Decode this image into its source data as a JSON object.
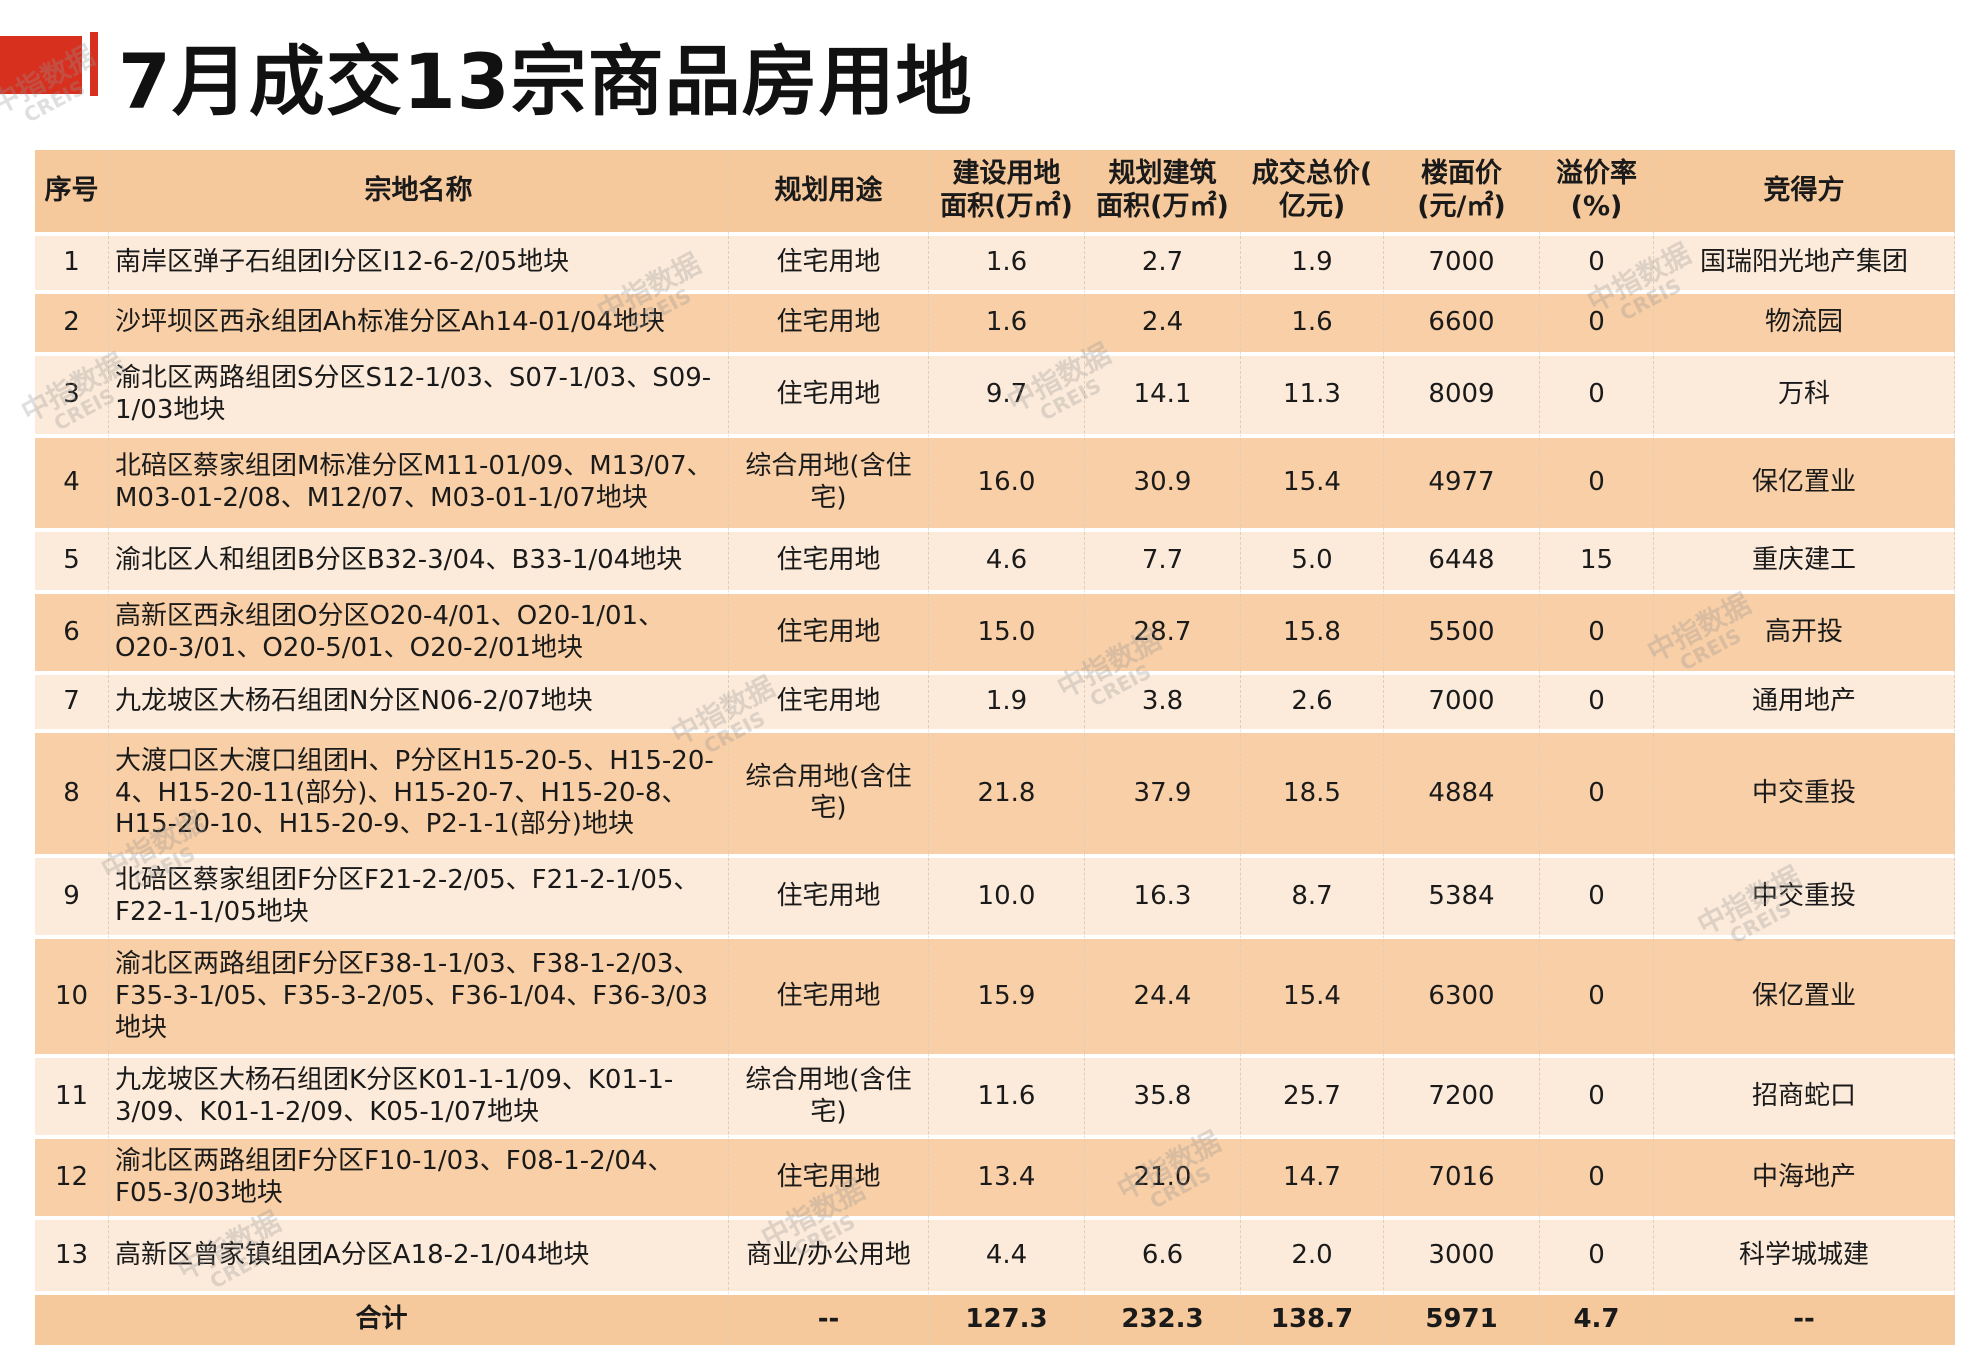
{
  "title": "7月成交13宗商品房用地",
  "watermark": {
    "main": "中指数据",
    "sub": "CREIS"
  },
  "table": {
    "headers": {
      "no": "序号",
      "name": "宗地名称",
      "use": "规划用途",
      "land_area": [
        "建设用地",
        "面积(万㎡)"
      ],
      "build_area": [
        "规划建筑",
        "面积(万㎡)"
      ],
      "total_price": [
        "成交总价(",
        "亿元)"
      ],
      "floor_price": [
        "楼面价",
        "(元/㎡)"
      ],
      "premium": [
        "溢价率",
        "(%)"
      ],
      "winner": "竞得方"
    },
    "rows": [
      {
        "no": "1",
        "name": "南岸区弹子石组团I分区I12-6-2/05地块",
        "use": "住宅用地",
        "land_area": "1.6",
        "build_area": "2.7",
        "total_price": "1.9",
        "floor_price": "7000",
        "premium": "0",
        "winner": "国瑞阳光地产集团"
      },
      {
        "no": "2",
        "name": "沙坪坝区西永组团Ah标准分区Ah14-01/04地块",
        "use": "住宅用地",
        "land_area": "1.6",
        "build_area": "2.4",
        "total_price": "1.6",
        "floor_price": "6600",
        "premium": "0",
        "winner": "物流园"
      },
      {
        "no": "3",
        "name": "渝北区两路组团S分区S12-1/03、S07-1/03、S09-1/03地块",
        "use": "住宅用地",
        "land_area": "9.7",
        "build_area": "14.1",
        "total_price": "11.3",
        "floor_price": "8009",
        "premium": "0",
        "winner": "万科"
      },
      {
        "no": "4",
        "name": "北碚区蔡家组团M标准分区M11-01/09、M13/07、M03-01-2/08、M12/07、M03-01-1/07地块",
        "use": "综合用地(含住宅)",
        "land_area": "16.0",
        "build_area": "30.9",
        "total_price": "15.4",
        "floor_price": "4977",
        "premium": "0",
        "winner": "保亿置业"
      },
      {
        "no": "5",
        "name": "渝北区人和组团B分区B32-3/04、B33-1/04地块",
        "use": "住宅用地",
        "land_area": "4.6",
        "build_area": "7.7",
        "total_price": "5.0",
        "floor_price": "6448",
        "premium": "15",
        "winner": "重庆建工"
      },
      {
        "no": "6",
        "name": "高新区西永组团O分区O20-4/01、O20-1/01、O20-3/01、O20-5/01、O20-2/01地块",
        "use": "住宅用地",
        "land_area": "15.0",
        "build_area": "28.7",
        "total_price": "15.8",
        "floor_price": "5500",
        "premium": "0",
        "winner": "高开投"
      },
      {
        "no": "7",
        "name": "九龙坡区大杨石组团N分区N06-2/07地块",
        "use": "住宅用地",
        "land_area": "1.9",
        "build_area": "3.8",
        "total_price": "2.6",
        "floor_price": "7000",
        "premium": "0",
        "winner": "通用地产"
      },
      {
        "no": "8",
        "name": "大渡口区大渡口组团H、P分区H15-20-5、H15-20-4、H15-20-11(部分)、H15-20-7、H15-20-8、H15-20-10、H15-20-9、P2-1-1(部分)地块",
        "use": "综合用地(含住宅)",
        "land_area": "21.8",
        "build_area": "37.9",
        "total_price": "18.5",
        "floor_price": "4884",
        "premium": "0",
        "winner": "中交重投"
      },
      {
        "no": "9",
        "name": "北碚区蔡家组团F分区F21-2-2/05、F21-2-1/05、F22-1-1/05地块",
        "use": "住宅用地",
        "land_area": "10.0",
        "build_area": "16.3",
        "total_price": "8.7",
        "floor_price": "5384",
        "premium": "0",
        "winner": "中交重投"
      },
      {
        "no": "10",
        "name": "渝北区两路组团F分区F38-1-1/03、F38-1-2/03、F35-3-1/05、F35-3-2/05、F36-1/04、F36-3/03地块",
        "use": "住宅用地",
        "land_area": "15.9",
        "build_area": "24.4",
        "total_price": "15.4",
        "floor_price": "6300",
        "premium": "0",
        "winner": "保亿置业"
      },
      {
        "no": "11",
        "name": "九龙坡区大杨石组团K分区K01-1-1/09、K01-1-3/09、K01-1-2/09、K05-1/07地块",
        "use": "综合用地(含住宅)",
        "land_area": "11.6",
        "build_area": "35.8",
        "total_price": "25.7",
        "floor_price": "7200",
        "premium": "0",
        "winner": "招商蛇口"
      },
      {
        "no": "12",
        "name": "渝北区两路组团F分区F10-1/03、F08-1-2/04、F05-3/03地块",
        "use": "住宅用地",
        "land_area": "13.4",
        "build_area": "21.0",
        "total_price": "14.7",
        "floor_price": "7016",
        "premium": "0",
        "winner": "中海地产"
      },
      {
        "no": "13",
        "name": "高新区曾家镇组团A分区A18-2-1/04地块",
        "use": "商业/办公用地",
        "land_area": "4.4",
        "build_area": "6.6",
        "total_price": "2.0",
        "floor_price": "3000",
        "premium": "0",
        "winner": "科学城城建"
      }
    ],
    "total": {
      "label": "合计",
      "use": "--",
      "land_area": "127.3",
      "build_area": "232.3",
      "total_price": "138.7",
      "floor_price": "5971",
      "premium": "4.7",
      "winner": "--"
    }
  }
}
